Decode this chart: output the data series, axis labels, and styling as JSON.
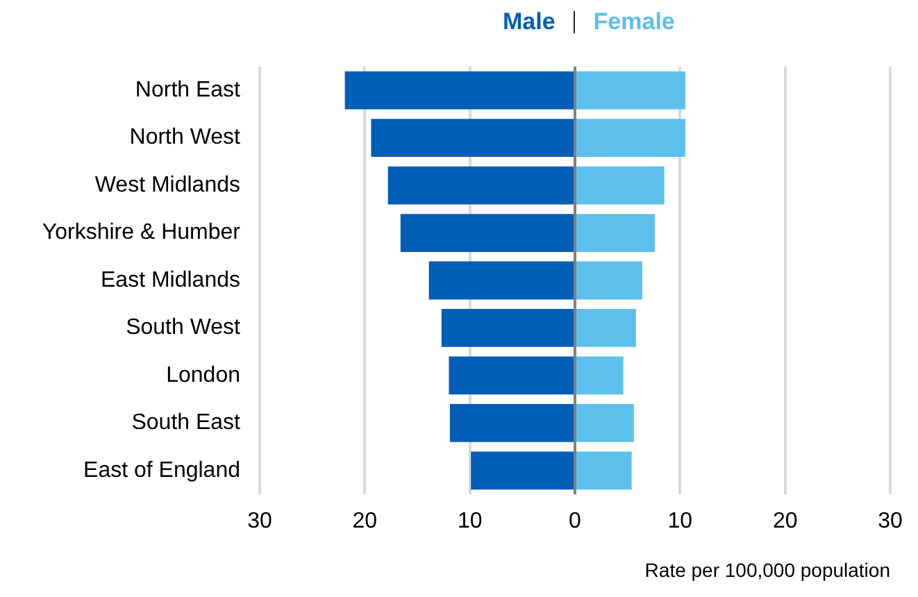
{
  "chart_data": {
    "type": "bar",
    "orientation": "horizontal",
    "stacked": true,
    "categories": [
      "North East",
      "North West",
      "West Midlands",
      "Yorkshire & Humber",
      "East Midlands",
      "South West",
      "London",
      "South East",
      "East of England"
    ],
    "series": [
      {
        "name": "Male",
        "color": "#005eb8",
        "values": [
          -21.9,
          -19.4,
          -17.8,
          -16.6,
          -13.9,
          -12.7,
          -12.0,
          -11.9,
          -9.9
        ]
      },
      {
        "name": "Female",
        "color": "#5dc0ea",
        "values": [
          10.5,
          10.5,
          8.5,
          7.6,
          6.4,
          5.8,
          4.6,
          5.6,
          5.4
        ]
      }
    ],
    "xlim": [
      -30,
      30
    ],
    "xticks": [
      {
        "value": -30,
        "label": "30"
      },
      {
        "value": -20,
        "label": "20"
      },
      {
        "value": -10,
        "label": "10"
      },
      0,
      10,
      20,
      30
    ],
    "xlabel": "Rate per 100,000 population",
    "grid": "x",
    "legend": "top"
  }
}
